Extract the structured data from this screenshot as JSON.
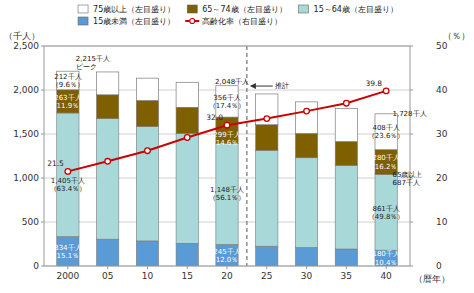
{
  "chart_data": {
    "type": "bar",
    "stacked": true,
    "x": [
      2000,
      2005,
      2010,
      2015,
      2020,
      2025,
      2030,
      2035,
      2040
    ],
    "xlim": [
      1997,
      2043
    ],
    "xticks": [
      2000,
      {
        "value": 2005,
        "label": "05"
      },
      {
        "value": 2010,
        "label": "10"
      },
      {
        "value": 2015,
        "label": "15"
      },
      {
        "value": 2020,
        "label": "20"
      },
      {
        "value": 2025,
        "label": "25"
      },
      {
        "value": 2030,
        "label": "30"
      },
      {
        "value": 2035,
        "label": "35"
      },
      {
        "value": 2040,
        "label": "40"
      }
    ],
    "ylim": [
      0,
      2500
    ],
    "yticks": [
      0,
      500,
      {
        "value": 1000,
        "label": "1,000"
      },
      {
        "value": 1500,
        "label": "1,500"
      },
      {
        "value": 2000,
        "label": "2,000"
      },
      {
        "value": 2500,
        "label": "2,500"
      }
    ],
    "y2lim": [
      0,
      50
    ],
    "y2ticks": [
      0,
      10,
      20,
      30,
      40,
      50
    ],
    "xlabel": "（暦年）",
    "ylabel": "（千人）",
    "y2label": "（％）",
    "grid": true,
    "legend": "top",
    "forecast_start": 2022.5,
    "series": [
      {
        "name": "15歳未満（左目盛り）",
        "color": "#5b9bd5",
        "values": [
          334,
          305,
          285,
          258,
          245,
          225,
          210,
          193,
          180
        ],
        "value_labels": [
          "334千人\n（15.1％）",
          null,
          null,
          null,
          "245千人\n（12.0％）",
          null,
          null,
          null,
          "180千人\n（10.4％）"
        ]
      },
      {
        "name": "15～64歳（左目盛り）",
        "color": "#a8d8d8",
        "values": [
          1405,
          1370,
          1300,
          1250,
          1148,
          1090,
          1020,
          950,
          861
        ],
        "value_labels": [
          "1,405千人\n（63.4％）",
          null,
          null,
          null,
          "1,148千人\n（56.1％）",
          null,
          null,
          null,
          "861千人\n（49.8％）"
        ]
      },
      {
        "name": "65～74歳（左目盛り）",
        "color": "#7f6000",
        "values": [
          263,
          270,
          295,
          295,
          299,
          290,
          275,
          270,
          280
        ],
        "value_labels": [
          "263千人\n（11.9％）",
          null,
          null,
          null,
          "299千人\n（14.6％）",
          null,
          null,
          null,
          "280千人\n（16.2％）"
        ]
      },
      {
        "name": "75歳以上（左目盛り）",
        "color": "#ffffff",
        "values": [
          212,
          260,
          255,
          285,
          356,
          350,
          360,
          375,
          408
        ],
        "value_labels": [
          "212千人\n（9.6％）",
          null,
          null,
          null,
          "356千人\n（17.4％）",
          null,
          null,
          null,
          "408千人\n（23.6％）"
        ]
      },
      {
        "name": "高齢化率（右目盛り）",
        "color": "#cc0000",
        "type": "line",
        "axis": "y2",
        "marker": "circle",
        "values": [
          21.5,
          23.8,
          26.2,
          29.2,
          32.0,
          33.5,
          35.2,
          37.0,
          39.8
        ],
        "value_labels": [
          "21.5",
          null,
          null,
          null,
          "32.0",
          null,
          null,
          null,
          "39.8"
        ]
      }
    ],
    "annotations": [
      {
        "text": "ピーク",
        "x": 2001,
        "y": 2240
      },
      {
        "text": "2,215千人",
        "x": 2001,
        "y": 2175
      },
      {
        "text": "2,048千人",
        "x": 2018.5,
        "y": 2100
      },
      {
        "text": "推計",
        "x": 2026,
        "y": 2050
      },
      {
        "text": "1,728千人",
        "x": 2040.8,
        "y": 1730
      },
      {
        "text": "65歳以上\n687千人",
        "x": 2040.8,
        "y": 1060
      }
    ]
  }
}
